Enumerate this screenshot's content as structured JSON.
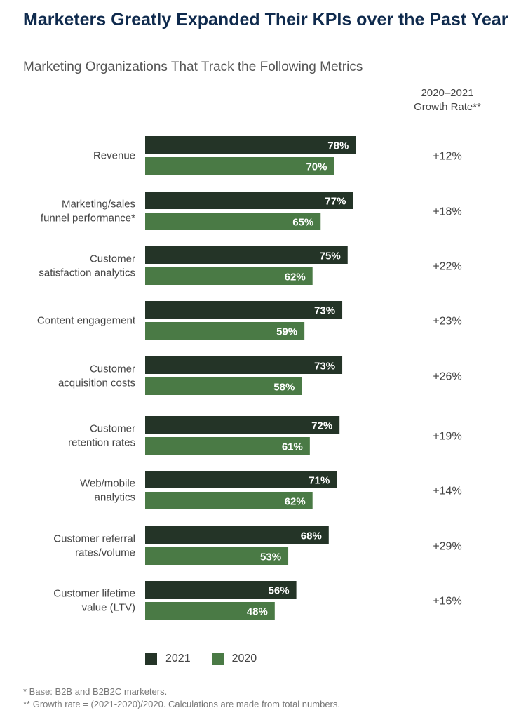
{
  "title": "Marketers Greatly Expanded Their KPIs over the Past Year",
  "subtitle": "Marketing Organizations That Track the Following Metrics",
  "growth_header": [
    "2020–2021",
    "Growth Rate**"
  ],
  "colors": {
    "series_2021": "#243427",
    "series_2020": "#4a7a45",
    "title": "#0f2a4d"
  },
  "chart_data": {
    "type": "bar",
    "orientation": "horizontal",
    "categories": [
      [
        "Revenue"
      ],
      [
        "Marketing/sales",
        "funnel performance*"
      ],
      [
        "Customer",
        "satisfaction analytics"
      ],
      [
        "Content engagement"
      ],
      [
        "Customer",
        "acquisition costs"
      ],
      [
        "Customer",
        "retention rates"
      ],
      [
        "Web/mobile",
        "analytics"
      ],
      [
        "Customer referral",
        "rates/volume"
      ],
      [
        "Customer lifetime",
        "value (LTV)"
      ]
    ],
    "series": [
      {
        "name": "2021",
        "values": [
          78,
          77,
          75,
          73,
          73,
          72,
          71,
          68,
          56
        ],
        "labels": [
          "78%",
          "77%",
          "75%",
          "73%",
          "73%",
          "72%",
          "71%",
          "68%",
          "56%"
        ]
      },
      {
        "name": "2020",
        "values": [
          70,
          65,
          62,
          59,
          58,
          61,
          62,
          53,
          48
        ],
        "labels": [
          "70%",
          "65%",
          "62%",
          "59%",
          "58%",
          "61%",
          "62%",
          "53%",
          "48%"
        ]
      }
    ],
    "growth_rates": [
      "+12%",
      "+18%",
      "+22%",
      "+23%",
      "+26%",
      "+19%",
      "+14%",
      "+29%",
      "+16%"
    ],
    "unit": "%",
    "legend": [
      "2021",
      "2020"
    ],
    "legend_position": "bottom"
  },
  "footnotes": [
    "* Base: B2B and B2B2C marketers.",
    "** Growth rate = (2021-2020)/2020. Calculations are made from total numbers."
  ]
}
